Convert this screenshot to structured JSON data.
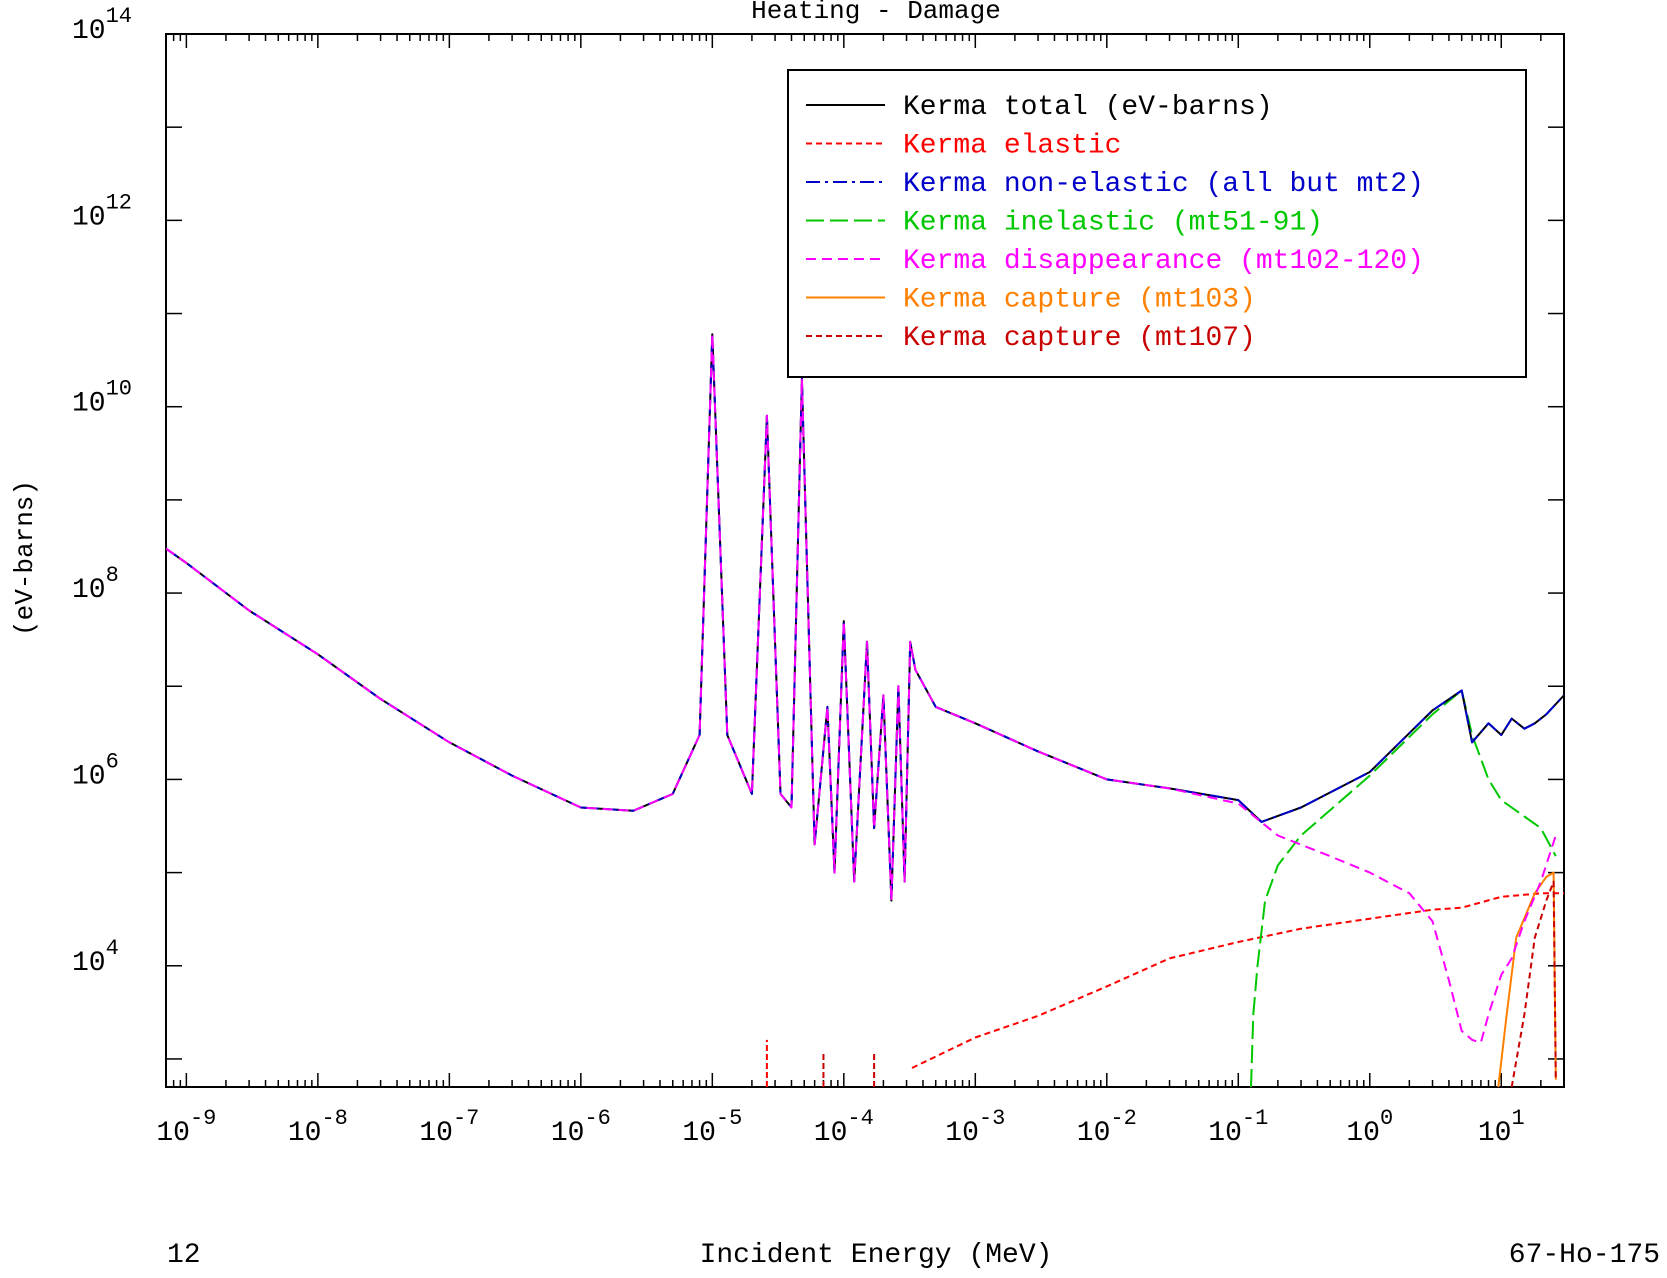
{
  "chart_data": {
    "type": "line",
    "title": "Heating - Damage",
    "xlabel": "Incident Energy (MeV)",
    "ylabel": "(eV-barns)",
    "x_scale": "log",
    "y_scale": "log",
    "xlim": [
      7e-10,
      30
    ],
    "ylim": [
      500,
      100000000000000.0
    ],
    "x_ticks": [
      {
        "value": 1e-09,
        "base": "10",
        "exp": "-9"
      },
      {
        "value": 1e-08,
        "base": "10",
        "exp": "-8"
      },
      {
        "value": 1e-07,
        "base": "10",
        "exp": "-7"
      },
      {
        "value": 1e-06,
        "base": "10",
        "exp": "-6"
      },
      {
        "value": 1e-05,
        "base": "10",
        "exp": "-5"
      },
      {
        "value": 0.0001,
        "base": "10",
        "exp": "-4"
      },
      {
        "value": 0.001,
        "base": "10",
        "exp": "-3"
      },
      {
        "value": 0.01,
        "base": "10",
        "exp": "-2"
      },
      {
        "value": 0.1,
        "base": "10",
        "exp": "-1"
      },
      {
        "value": 1,
        "base": "10",
        "exp": "0"
      },
      {
        "value": 10,
        "base": "10",
        "exp": "1"
      }
    ],
    "y_ticks": [
      {
        "value": 10000.0,
        "base": "10",
        "exp": "4"
      },
      {
        "value": 1000000.0,
        "base": "10",
        "exp": "6"
      },
      {
        "value": 100000000.0,
        "base": "10",
        "exp": "8"
      },
      {
        "value": 10000000000.0,
        "base": "10",
        "exp": "10"
      },
      {
        "value": 1000000000000.0,
        "base": "10",
        "exp": "12"
      },
      {
        "value": 100000000000000.0,
        "base": "10",
        "exp": "14"
      }
    ],
    "footer_left": "12",
    "footer_right": "67-Ho-175",
    "legend_position": "top-right",
    "series": [
      {
        "name": "Kerma total  (eV-barns)",
        "color": "#000000",
        "dash": "solid",
        "points": [
          [
            7e-10,
            300000000.0
          ],
          [
            1e-09,
            210000000.0
          ],
          [
            3e-09,
            65000000.0
          ],
          [
            1e-08,
            22000000.0
          ],
          [
            3e-08,
            7300000.0
          ],
          [
            1e-07,
            2500000.0
          ],
          [
            3e-07,
            1100000.0
          ],
          [
            1e-06,
            500000.0
          ],
          [
            2.5e-06,
            460000.0
          ],
          [
            5e-06,
            700000.0
          ],
          [
            8e-06,
            3000000.0
          ],
          [
            1e-05,
            60000000000.0
          ],
          [
            1.3e-05,
            3000000.0
          ],
          [
            2e-05,
            700000.0
          ],
          [
            2.6e-05,
            8000000000.0
          ],
          [
            3.3e-05,
            700000.0
          ],
          [
            4e-05,
            500000.0
          ],
          [
            4.8e-05,
            20000000000.0
          ],
          [
            6e-05,
            200000.0
          ],
          [
            7.5e-05,
            6000000.0
          ],
          [
            8.5e-05,
            100000.0
          ],
          [
            0.0001,
            50000000.0
          ],
          [
            0.00012,
            80000.0
          ],
          [
            0.00015,
            30000000.0
          ],
          [
            0.00017,
            300000.0
          ],
          [
            0.0002,
            8000000.0
          ],
          [
            0.00023,
            50000.0
          ],
          [
            0.00026,
            10000000.0
          ],
          [
            0.00029,
            80000.0
          ],
          [
            0.00032,
            30000000.0
          ],
          [
            0.00035,
            15000000.0
          ],
          [
            0.0005,
            6000000.0
          ],
          [
            0.001,
            4000000.0
          ],
          [
            0.003,
            2000000.0
          ],
          [
            0.01,
            1000000.0
          ],
          [
            0.03,
            800000.0
          ],
          [
            0.1,
            600000.0
          ],
          [
            0.15,
            350000.0
          ],
          [
            0.3,
            500000.0
          ],
          [
            1,
            1200000.0
          ],
          [
            3,
            5500000.0
          ],
          [
            5,
            9000000.0
          ],
          [
            6,
            2500000.0
          ],
          [
            8,
            4000000.0
          ],
          [
            10,
            3000000.0
          ],
          [
            12,
            4500000.0
          ],
          [
            15,
            3500000.0
          ],
          [
            18,
            4000000.0
          ],
          [
            22,
            5000000.0
          ],
          [
            30,
            8000000.0
          ]
        ]
      },
      {
        "name": "Kerma elastic",
        "color": "#ff0000",
        "dash": "short-dash",
        "points": [
          [
            0.00033,
            800
          ],
          [
            0.001,
            1700
          ],
          [
            0.003,
            2900
          ],
          [
            0.01,
            6000
          ],
          [
            0.03,
            12000.0
          ],
          [
            0.1,
            18000.0
          ],
          [
            0.3,
            25000.0
          ],
          [
            1,
            32000.0
          ],
          [
            3,
            40000.0
          ],
          [
            5,
            42000.0
          ],
          [
            10,
            55000.0
          ],
          [
            20,
            60000.0
          ],
          [
            30,
            60000.0
          ]
        ]
      },
      {
        "name": "Kerma non-elastic (all but mt2)",
        "color": "#0000c8",
        "dash": "dash-dot",
        "points": [
          [
            7e-10,
            300000000.0
          ],
          [
            1e-09,
            210000000.0
          ],
          [
            3e-09,
            65000000.0
          ],
          [
            1e-08,
            22000000.0
          ],
          [
            3e-08,
            7300000.0
          ],
          [
            1e-07,
            2500000.0
          ],
          [
            3e-07,
            1100000.0
          ],
          [
            1e-06,
            500000.0
          ],
          [
            2.5e-06,
            460000.0
          ],
          [
            5e-06,
            700000.0
          ],
          [
            8e-06,
            3000000.0
          ],
          [
            1e-05,
            60000000000.0
          ],
          [
            1.3e-05,
            3000000.0
          ],
          [
            2e-05,
            700000.0
          ],
          [
            2.6e-05,
            8000000000.0
          ],
          [
            3.3e-05,
            700000.0
          ],
          [
            4e-05,
            500000.0
          ],
          [
            4.8e-05,
            20000000000.0
          ],
          [
            6e-05,
            200000.0
          ],
          [
            7.5e-05,
            6000000.0
          ],
          [
            8.5e-05,
            100000.0
          ],
          [
            0.0001,
            50000000.0
          ],
          [
            0.00012,
            80000.0
          ],
          [
            0.00015,
            30000000.0
          ],
          [
            0.00017,
            300000.0
          ],
          [
            0.0002,
            8000000.0
          ],
          [
            0.00023,
            50000.0
          ],
          [
            0.00026,
            10000000.0
          ],
          [
            0.00029,
            80000.0
          ],
          [
            0.00032,
            30000000.0
          ],
          [
            0.00035,
            15000000.0
          ],
          [
            0.0005,
            6000000.0
          ],
          [
            0.001,
            4000000.0
          ],
          [
            0.003,
            2000000.0
          ],
          [
            0.01,
            1000000.0
          ],
          [
            0.03,
            800000.0
          ],
          [
            0.1,
            600000.0
          ],
          [
            0.15,
            350000.0
          ],
          [
            0.3,
            500000.0
          ],
          [
            1,
            1200000.0
          ],
          [
            3,
            5500000.0
          ],
          [
            5,
            9000000.0
          ],
          [
            6,
            2500000.0
          ],
          [
            8,
            4000000.0
          ],
          [
            10,
            3000000.0
          ],
          [
            12,
            4500000.0
          ],
          [
            15,
            3500000.0
          ],
          [
            18,
            4000000.0
          ],
          [
            22,
            5000000.0
          ],
          [
            30,
            8000000.0
          ]
        ]
      },
      {
        "name": "Kerma inelastic (mt51-91)",
        "color": "#00c800",
        "dash": "long-dash",
        "points": [
          [
            0.125,
            500
          ],
          [
            0.13,
            3000
          ],
          [
            0.14,
            10000.0
          ],
          [
            0.16,
            50000.0
          ],
          [
            0.2,
            120000.0
          ],
          [
            0.3,
            250000.0
          ],
          [
            1,
            1100000.0
          ],
          [
            3,
            5000000.0
          ],
          [
            5,
            9000000.0
          ],
          [
            6,
            3000000.0
          ],
          [
            8,
            1000000.0
          ],
          [
            10,
            600000.0
          ],
          [
            15,
            400000.0
          ],
          [
            20,
            300000.0
          ],
          [
            26,
            150000.0
          ]
        ]
      },
      {
        "name": "Kerma disappearance (mt102-120)",
        "color": "#ff00ff",
        "dash": "dash",
        "points": [
          [
            7e-10,
            300000000.0
          ],
          [
            1e-09,
            210000000.0
          ],
          [
            3e-09,
            65000000.0
          ],
          [
            1e-08,
            22000000.0
          ],
          [
            3e-08,
            7300000.0
          ],
          [
            1e-07,
            2500000.0
          ],
          [
            3e-07,
            1100000.0
          ],
          [
            1e-06,
            500000.0
          ],
          [
            2.5e-06,
            460000.0
          ],
          [
            5e-06,
            700000.0
          ],
          [
            8e-06,
            3000000.0
          ],
          [
            1e-05,
            60000000000.0
          ],
          [
            1.3e-05,
            3000000.0
          ],
          [
            2e-05,
            700000.0
          ],
          [
            2.6e-05,
            8000000000.0
          ],
          [
            3.3e-05,
            700000.0
          ],
          [
            4e-05,
            500000.0
          ],
          [
            4.8e-05,
            20000000000.0
          ],
          [
            6e-05,
            200000.0
          ],
          [
            7.5e-05,
            6000000.0
          ],
          [
            8.5e-05,
            100000.0
          ],
          [
            0.0001,
            50000000.0
          ],
          [
            0.00012,
            80000.0
          ],
          [
            0.00015,
            30000000.0
          ],
          [
            0.00017,
            300000.0
          ],
          [
            0.0002,
            8000000.0
          ],
          [
            0.00023,
            50000.0
          ],
          [
            0.00026,
            10000000.0
          ],
          [
            0.00029,
            80000.0
          ],
          [
            0.00032,
            30000000.0
          ],
          [
            0.00035,
            15000000.0
          ],
          [
            0.0005,
            6000000.0
          ],
          [
            0.001,
            4000000.0
          ],
          [
            0.003,
            2000000.0
          ],
          [
            0.01,
            1000000.0
          ],
          [
            0.03,
            800000.0
          ],
          [
            0.1,
            550000.0
          ],
          [
            0.2,
            250000.0
          ],
          [
            0.5,
            150000.0
          ],
          [
            1,
            100000.0
          ],
          [
            2,
            60000.0
          ],
          [
            3,
            30000.0
          ],
          [
            4,
            7000
          ],
          [
            5,
            2000
          ],
          [
            6,
            1600
          ],
          [
            7,
            1500
          ],
          [
            8,
            3000
          ],
          [
            10,
            8000
          ],
          [
            12,
            12000.0
          ],
          [
            15,
            30000.0
          ],
          [
            20,
            80000.0
          ],
          [
            26,
            250000.0
          ]
        ]
      },
      {
        "name": "Kerma capture (mt103)",
        "color": "#ff8000",
        "dash": "solid",
        "points": [
          [
            9.5,
            500
          ],
          [
            11,
            3000
          ],
          [
            13,
            20000.0
          ],
          [
            18,
            60000.0
          ],
          [
            22,
            90000.0
          ],
          [
            25,
            100000.0
          ],
          [
            26,
            600
          ]
        ]
      },
      {
        "name": "Kerma capture (mt107)",
        "color": "#c80000",
        "dash": "short-dash",
        "points": [
          [
            12,
            500
          ],
          [
            15,
            3000
          ],
          [
            18,
            20000.0
          ],
          [
            22,
            50000.0
          ],
          [
            25,
            80000.0
          ],
          [
            26,
            600
          ]
        ]
      }
    ],
    "spikes": [
      {
        "x": 2.6e-05,
        "top": 1600,
        "color": "#ff0000"
      },
      {
        "x": 7e-05,
        "top": 1200,
        "color": "#c80000"
      },
      {
        "x": 0.00017,
        "top": 1200,
        "color": "#c80000"
      }
    ]
  }
}
